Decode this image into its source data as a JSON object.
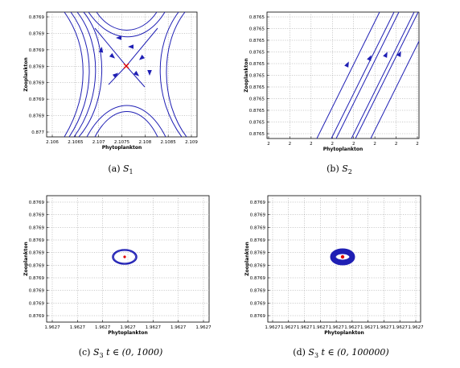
{
  "figure": {
    "panels": [
      {
        "id": "a",
        "label": "(a)",
        "subscript_symbol": "S",
        "subscript": "1",
        "suffix": ""
      },
      {
        "id": "b",
        "label": "(b)",
        "subscript_symbol": "S",
        "subscript": "2",
        "suffix": ""
      },
      {
        "id": "c",
        "label": "(c)",
        "subscript_symbol": "S",
        "subscript": "3",
        "suffix": " t ∈ (0, 1000)"
      },
      {
        "id": "d",
        "label": "(d)",
        "subscript_symbol": "S",
        "subscript": "3",
        "suffix": " t ∈ (0, 100000)"
      }
    ]
  },
  "chart_data": [
    {
      "type": "line",
      "xlabel": "Phytoplankton",
      "ylabel": "Zooplankton",
      "x_ticks": [
        "2.106",
        "2.1065",
        "2.107",
        "2.1075",
        "2.108",
        "2.1085",
        "2.109"
      ],
      "y_ticks": [
        "0.877",
        "0.8769",
        "0.8769",
        "0.8769",
        "0.8769",
        "0.8769",
        "0.8769",
        "0.8769"
      ],
      "xlim": [
        2.106,
        2.109
      ],
      "grid": true,
      "equilibrium_marker": "red x at saddle point",
      "series_color": "#1f1fb4"
    },
    {
      "type": "line",
      "xlabel": "Phytoplankton",
      "ylabel": "Zooplankton",
      "x_ticks": [
        "2",
        "2",
        "2",
        "2",
        "2",
        "2",
        "2",
        "2"
      ],
      "y_ticks": [
        "0.8765",
        "0.8765",
        "0.8765",
        "0.8765",
        "0.8765",
        "0.8765",
        "0.8765",
        "0.8765",
        "0.8765",
        "0.8765",
        "0.8765"
      ],
      "grid": true,
      "series_color": "#1f1fb4"
    },
    {
      "type": "line",
      "xlabel": "Phytoplankton",
      "ylabel": "Zooplankton",
      "x_ticks": [
        "1.9627",
        "1.9627",
        "1.9627",
        "1.9627",
        "1.9627",
        "1.9627",
        "1.9627"
      ],
      "y_ticks": [
        "0.8769",
        "0.8769",
        "0.8769",
        "0.8769",
        "0.8769",
        "0.8769",
        "0.8769",
        "0.8769",
        "0.8769",
        "0.8769"
      ],
      "grid": true,
      "equilibrium_marker": "red dot at center",
      "series_color": "#1f1fb4"
    },
    {
      "type": "line",
      "xlabel": "Phytoplankton",
      "ylabel": "Zooplankton",
      "x_ticks": [
        "1.9627",
        "1.9627",
        "1.9627",
        "1.9627",
        "1.9627",
        "1.9627",
        "1.9627",
        "1.9627",
        "1.9627",
        "1.9627"
      ],
      "y_ticks": [
        "0.8769",
        "0.8769",
        "0.8769",
        "0.8769",
        "0.8769",
        "0.8769",
        "0.8769",
        "0.8769",
        "0.8769",
        "0.8769"
      ],
      "grid": true,
      "equilibrium_marker": "red dot at center",
      "series_color": "#1f1fb4"
    }
  ]
}
